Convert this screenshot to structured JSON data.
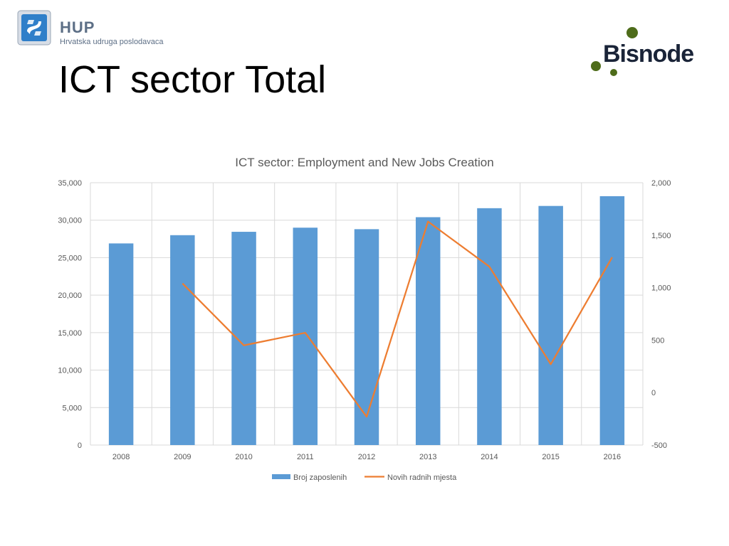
{
  "header": {
    "logo_name": "HUP",
    "logo_subtitle": "Hrvatska udruga poslodavaca",
    "title": "ICT sector Total",
    "brand_logo_text": "Bisnode"
  },
  "colors": {
    "bar": "#5b9bd5",
    "line": "#ed7d31",
    "grid": "#d9d9d9",
    "axis_text": "#595959",
    "hup_blue": "#2f7fc9",
    "hup_text": "#5d6f86",
    "bisnode_text": "#1a2438",
    "bisnode_dot": "#4e6c1a"
  },
  "chart_data": {
    "type": "bar",
    "title": "ICT sector: Employment and New Jobs Creation",
    "categories": [
      "2008",
      "2009",
      "2010",
      "2011",
      "2012",
      "2013",
      "2014",
      "2015",
      "2016"
    ],
    "series": [
      {
        "name": "Broj zaposlenih",
        "type": "bar",
        "axis": "left",
        "values": [
          26900,
          28000,
          28450,
          29000,
          28800,
          30400,
          31600,
          31900,
          33200
        ]
      },
      {
        "name": "Novih radnih mjesta",
        "type": "line",
        "axis": "right",
        "values": [
          null,
          1040,
          450,
          570,
          -230,
          1630,
          1200,
          270,
          1290
        ]
      }
    ],
    "y_left": {
      "min": 0,
      "max": 35000,
      "ticks": [
        0,
        5000,
        10000,
        15000,
        20000,
        25000,
        30000,
        35000
      ]
    },
    "y_right": {
      "min": -500,
      "max": 2000,
      "ticks": [
        -500,
        0,
        500,
        1000,
        1500,
        2000
      ]
    },
    "grid": true,
    "legend_position": "bottom"
  }
}
